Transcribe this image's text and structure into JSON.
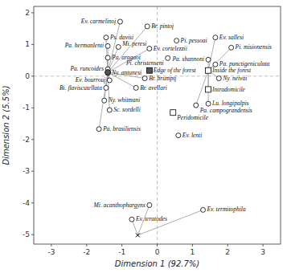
{
  "chart_data": {
    "type": "scatter",
    "xlabel": "Dimension 1 (92.7%)",
    "ylabel": "Dimension 2 (5.5%)",
    "xlim": [
      -3.5,
      3.5
    ],
    "ylim": [
      -5.3,
      2.2
    ],
    "xticks": [
      -3,
      -2,
      -1,
      0,
      1,
      2,
      3
    ],
    "yticks": [
      -5,
      -4,
      -3,
      -2,
      -1,
      0,
      1,
      2
    ],
    "grid": false,
    "hlines": [
      0
    ],
    "vlines": [
      0
    ],
    "series": [
      {
        "marker": "circle",
        "labels": [
          "Ev. carmelinoį",
          "Br. pintoį",
          "Ps. davisi",
          "Pa. hermanlenti",
          "Mi. peresi",
          "Pi. pessoai",
          "Ev. sallesi",
          "Pa. aragaoi",
          "Ev. cortelezzii",
          "Pi. misionensis",
          "Pi. christenseni",
          "Pa. shannoni",
          "Pa. runcoides",
          "Ny. antunesi",
          "Pa. punctigeniculata",
          "Ev. bourrouį",
          "Br. brumptį",
          "Ny. neivai",
          "Bi. flaviscutellata",
          "Br. avellari",
          "Ny. whitmani",
          "Lu. longipalpis",
          "Pa. campograndensis",
          "Sc. sordelli",
          "Pa. brasiliensis",
          "Ev. lenti",
          "Mi. acanthophargynx",
          "Ev. termitophila",
          "Ev. teratodes"
        ],
        "x": [
          -1.05,
          -0.28,
          -1.45,
          -1.4,
          -1.1,
          0.55,
          1.65,
          -1.4,
          -0.22,
          2.1,
          0.3,
          1.45,
          -1.4,
          -1.4,
          1.65,
          -1.35,
          -0.35,
          1.75,
          -1.45,
          -0.6,
          -1.5,
          1.45,
          1.1,
          -1.35,
          -1.65,
          0.6,
          -0.22,
          1.3,
          -0.72
        ],
        "values": [
          1.72,
          1.57,
          1.22,
          0.95,
          0.92,
          1.12,
          1.22,
          0.58,
          0.87,
          0.9,
          0.57,
          0.52,
          0.22,
          0.1,
          0.37,
          -0.13,
          -0.07,
          -0.07,
          -0.37,
          -0.37,
          -0.77,
          -0.87,
          -0.92,
          -1.07,
          -1.67,
          -1.87,
          -4.07,
          -4.22,
          -4.52
        ]
      },
      {
        "marker": "square",
        "labels": [
          "Edge of the forest",
          "Inside the forest",
          "Intradomicile",
          "Peridomicile"
        ],
        "x": [
          -0.22,
          1.45,
          1.45,
          0.45
        ],
        "values": [
          0.18,
          0.18,
          -0.42,
          -1.15
        ],
        "colors": [
          "#555555",
          "#ffffff",
          "#ffffff",
          "#ffffff"
        ]
      }
    ],
    "hubs": [
      {
        "x": -1.4,
        "y": 0.12,
        "marker": "circle",
        "color": "#555555",
        "spokes_x": [
          -1.05,
          -1.45,
          -1.4,
          -1.1,
          -1.4,
          -1.4,
          -1.35,
          -1.45,
          -1.5,
          -1.35,
          -1.65,
          -0.28,
          -0.22,
          -0.35,
          -0.6
        ],
        "spokes_y": [
          1.72,
          1.22,
          0.95,
          0.92,
          0.58,
          0.22,
          -0.13,
          -0.37,
          -0.77,
          -1.07,
          -1.67,
          1.57,
          0.87,
          -0.07,
          -0.37
        ]
      },
      {
        "x": 1.45,
        "y": 0.18,
        "spokes_x": [
          1.65,
          2.1,
          1.45,
          1.65,
          1.45,
          1.75,
          1.45,
          1.1
        ],
        "spokes_y": [
          1.22,
          0.9,
          0.52,
          0.37,
          -0.42,
          -0.07,
          -0.87,
          -0.92
        ]
      },
      {
        "x": -0.55,
        "y": -5.02,
        "marker": "cross",
        "color": "#000000",
        "spokes_x": [
          -0.72,
          -0.22,
          1.3
        ],
        "spokes_y": [
          -4.52,
          -4.07,
          -4.22
        ]
      }
    ]
  }
}
